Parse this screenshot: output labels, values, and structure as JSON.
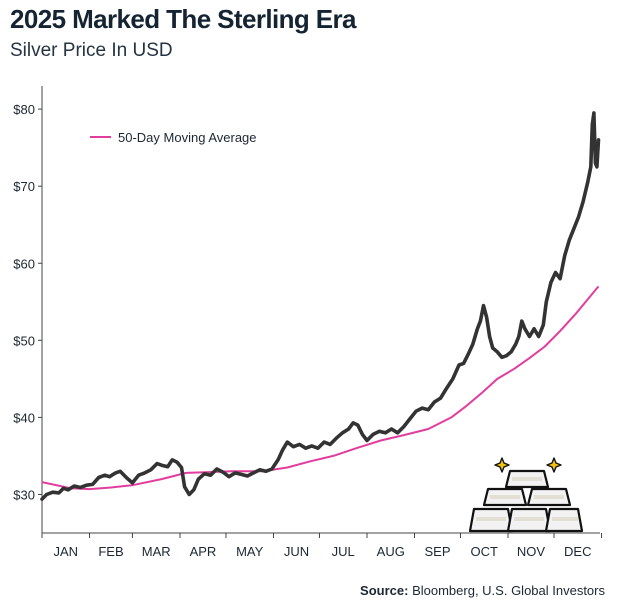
{
  "title": "2025 Marked The Sterling Era",
  "subtitle": "Silver Price In USD",
  "source": {
    "label": "Source:",
    "text": "Bloomberg, U.S. Global Investors"
  },
  "colors": {
    "price": "#333333",
    "ma": "#e23c9c",
    "axis": "#444444",
    "text": "#1d2733"
  },
  "icon": "gold-bars-icon",
  "chart_data": {
    "type": "line",
    "xlabel": "",
    "ylabel": "",
    "ylim": [
      25,
      83
    ],
    "yticks": [
      30,
      40,
      50,
      60,
      70,
      80
    ],
    "ytick_labels": [
      "$30",
      "$40",
      "$50",
      "$60",
      "$70",
      "$80"
    ],
    "xticks": [
      "JAN",
      "FEB",
      "MAR",
      "APR",
      "MAY",
      "JUN",
      "JUL",
      "AUG",
      "SEP",
      "OCT",
      "NOV",
      "DEC"
    ],
    "legend": {
      "placement": "top-left"
    },
    "grid": false,
    "series": [
      {
        "name": "",
        "points": [
          [
            "2025-01-01",
            29.4
          ],
          [
            "2025-01-04",
            30.0
          ],
          [
            "2025-01-08",
            30.3
          ],
          [
            "2025-01-12",
            30.2
          ],
          [
            "2025-01-15",
            30.8
          ],
          [
            "2025-01-18",
            30.6
          ],
          [
            "2025-01-22",
            31.1
          ],
          [
            "2025-01-26",
            30.9
          ],
          [
            "2025-01-30",
            31.2
          ],
          [
            "2025-02-03",
            31.3
          ],
          [
            "2025-02-07",
            32.2
          ],
          [
            "2025-02-11",
            32.5
          ],
          [
            "2025-02-14",
            32.3
          ],
          [
            "2025-02-18",
            32.8
          ],
          [
            "2025-02-21",
            33.0
          ],
          [
            "2025-02-25",
            32.2
          ],
          [
            "2025-03-01",
            31.5
          ],
          [
            "2025-03-05",
            32.5
          ],
          [
            "2025-03-09",
            32.8
          ],
          [
            "2025-03-13",
            33.2
          ],
          [
            "2025-03-17",
            34.0
          ],
          [
            "2025-03-20",
            33.8
          ],
          [
            "2025-03-24",
            33.6
          ],
          [
            "2025-03-27",
            34.5
          ],
          [
            "2025-03-30",
            34.2
          ],
          [
            "2025-04-02",
            33.5
          ],
          [
            "2025-04-04",
            31.0
          ],
          [
            "2025-04-07",
            30.0
          ],
          [
            "2025-04-10",
            30.6
          ],
          [
            "2025-04-13",
            32.0
          ],
          [
            "2025-04-17",
            32.7
          ],
          [
            "2025-04-21",
            32.5
          ],
          [
            "2025-04-25",
            33.3
          ],
          [
            "2025-04-29",
            32.9
          ],
          [
            "2025-05-03",
            32.3
          ],
          [
            "2025-05-07",
            32.8
          ],
          [
            "2025-05-11",
            32.6
          ],
          [
            "2025-05-15",
            32.4
          ],
          [
            "2025-05-19",
            32.8
          ],
          [
            "2025-05-23",
            33.2
          ],
          [
            "2025-05-27",
            33.0
          ],
          [
            "2025-05-31",
            33.3
          ],
          [
            "2025-06-04",
            34.5
          ],
          [
            "2025-06-07",
            35.8
          ],
          [
            "2025-06-10",
            36.8
          ],
          [
            "2025-06-14",
            36.2
          ],
          [
            "2025-06-18",
            36.5
          ],
          [
            "2025-06-22",
            36.0
          ],
          [
            "2025-06-26",
            36.3
          ],
          [
            "2025-06-30",
            36.0
          ],
          [
            "2025-07-04",
            36.8
          ],
          [
            "2025-07-08",
            36.5
          ],
          [
            "2025-07-12",
            37.3
          ],
          [
            "2025-07-16",
            38.0
          ],
          [
            "2025-07-20",
            38.5
          ],
          [
            "2025-07-23",
            39.3
          ],
          [
            "2025-07-26",
            39.0
          ],
          [
            "2025-07-29",
            37.8
          ],
          [
            "2025-08-01",
            37.0
          ],
          [
            "2025-08-05",
            37.8
          ],
          [
            "2025-08-09",
            38.2
          ],
          [
            "2025-08-13",
            38.0
          ],
          [
            "2025-08-17",
            38.5
          ],
          [
            "2025-08-21",
            38.0
          ],
          [
            "2025-08-25",
            38.8
          ],
          [
            "2025-08-29",
            39.8
          ],
          [
            "2025-09-02",
            40.8
          ],
          [
            "2025-09-06",
            41.2
          ],
          [
            "2025-09-10",
            41.0
          ],
          [
            "2025-09-14",
            42.0
          ],
          [
            "2025-09-18",
            42.5
          ],
          [
            "2025-09-22",
            43.8
          ],
          [
            "2025-09-26",
            45.0
          ],
          [
            "2025-09-30",
            46.8
          ],
          [
            "2025-10-03",
            47.0
          ],
          [
            "2025-10-06",
            48.2
          ],
          [
            "2025-10-09",
            49.5
          ],
          [
            "2025-10-12",
            51.5
          ],
          [
            "2025-10-14",
            52.5
          ],
          [
            "2025-10-16",
            54.5
          ],
          [
            "2025-10-18",
            53.0
          ],
          [
            "2025-10-20",
            50.5
          ],
          [
            "2025-10-22",
            49.0
          ],
          [
            "2025-10-25",
            48.5
          ],
          [
            "2025-10-28",
            47.8
          ],
          [
            "2025-10-31",
            48.0
          ],
          [
            "2025-11-03",
            48.5
          ],
          [
            "2025-11-06",
            49.5
          ],
          [
            "2025-11-08",
            50.5
          ],
          [
            "2025-11-10",
            52.5
          ],
          [
            "2025-11-12",
            51.5
          ],
          [
            "2025-11-15",
            50.5
          ],
          [
            "2025-11-18",
            51.5
          ],
          [
            "2025-11-21",
            50.5
          ],
          [
            "2025-11-24",
            52.0
          ],
          [
            "2025-11-26",
            55.0
          ],
          [
            "2025-11-29",
            57.5
          ],
          [
            "2025-12-02",
            58.8
          ],
          [
            "2025-12-05",
            58.0
          ],
          [
            "2025-12-08",
            61.0
          ],
          [
            "2025-12-11",
            63.0
          ],
          [
            "2025-12-14",
            64.5
          ],
          [
            "2025-12-17",
            66.0
          ],
          [
            "2025-12-20",
            68.0
          ],
          [
            "2025-12-23",
            70.5
          ],
          [
            "2025-12-25",
            72.5
          ],
          [
            "2025-12-26",
            78.0
          ],
          [
            "2025-12-27",
            79.5
          ],
          [
            "2025-12-28",
            73.0
          ],
          [
            "2025-12-29",
            72.5
          ],
          [
            "2025-12-30",
            76.0
          ]
        ]
      },
      {
        "name": "50-Day Moving Average",
        "points": [
          [
            "2025-01-01",
            31.6
          ],
          [
            "2025-01-20",
            30.8
          ],
          [
            "2025-02-01",
            30.7
          ],
          [
            "2025-02-15",
            30.9
          ],
          [
            "2025-03-01",
            31.2
          ],
          [
            "2025-03-20",
            32.0
          ],
          [
            "2025-04-05",
            32.8
          ],
          [
            "2025-04-20",
            32.9
          ],
          [
            "2025-05-05",
            33.0
          ],
          [
            "2025-05-25",
            33.0
          ],
          [
            "2025-06-10",
            33.5
          ],
          [
            "2025-06-25",
            34.3
          ],
          [
            "2025-07-10",
            35.0
          ],
          [
            "2025-07-25",
            36.0
          ],
          [
            "2025-08-10",
            37.0
          ],
          [
            "2025-08-25",
            37.7
          ],
          [
            "2025-09-10",
            38.5
          ],
          [
            "2025-09-25",
            40.0
          ],
          [
            "2025-10-05",
            41.5
          ],
          [
            "2025-10-15",
            43.2
          ],
          [
            "2025-10-25",
            45.0
          ],
          [
            "2025-11-05",
            46.3
          ],
          [
            "2025-11-15",
            47.7
          ],
          [
            "2025-11-25",
            49.2
          ],
          [
            "2025-12-05",
            51.2
          ],
          [
            "2025-12-15",
            53.4
          ],
          [
            "2025-12-25",
            55.8
          ],
          [
            "2025-12-30",
            57.0
          ]
        ]
      }
    ]
  }
}
